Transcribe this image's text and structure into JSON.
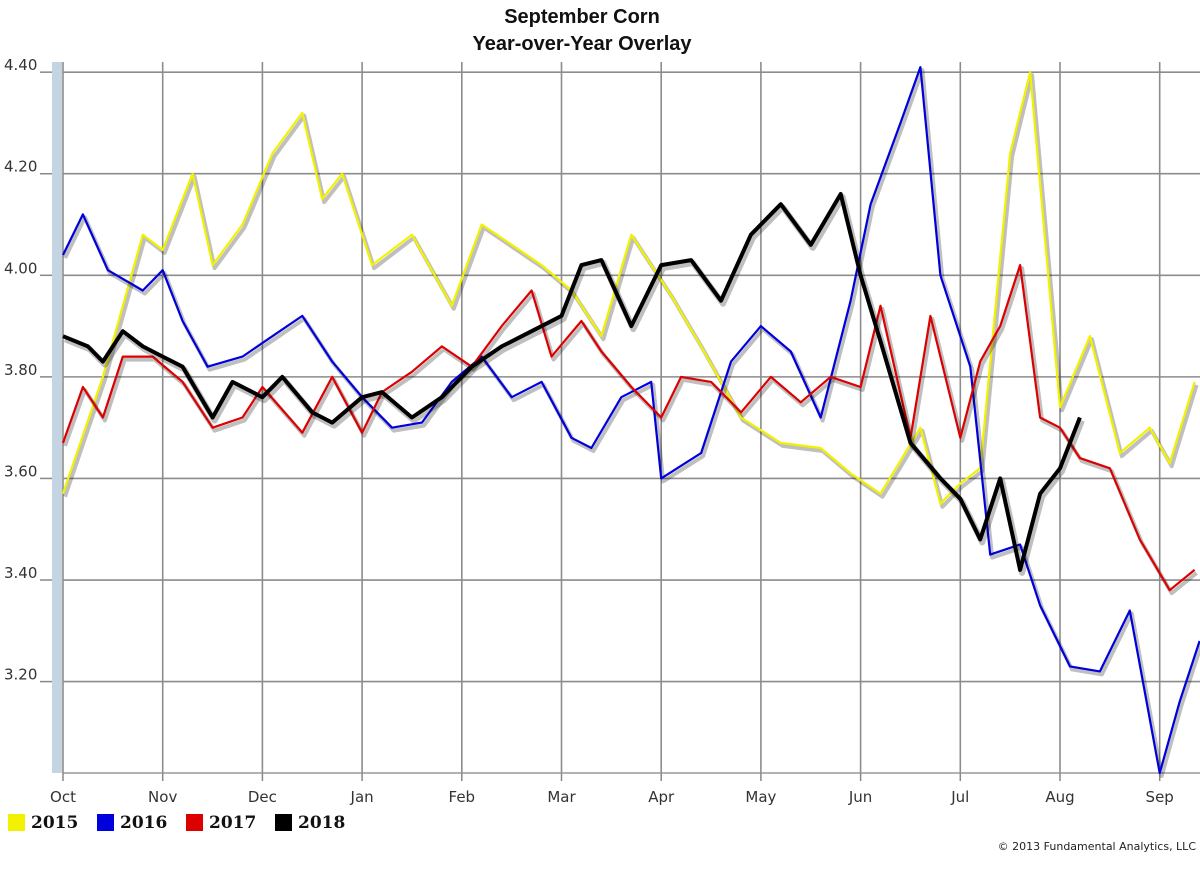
{
  "chart_data": {
    "type": "line",
    "title": "September Corn",
    "subtitle": "Year-over-Year Overlay",
    "xlabel": "",
    "ylabel": "",
    "x_ticks": [
      "Oct",
      "Nov",
      "Dec",
      "Jan",
      "Feb",
      "Mar",
      "Apr",
      "May",
      "Jun",
      "Jul",
      "Aug",
      "Sep"
    ],
    "y_ticks": [
      "3.20",
      "3.40",
      "3.60",
      "3.80",
      "4.00",
      "4.20",
      "4.40"
    ],
    "ylim": [
      3.02,
      4.42
    ],
    "grid": true,
    "legend_position": "bottom-left",
    "copyright": "© 2013 Fundamental Analytics, LLC",
    "series": [
      {
        "name": "2015",
        "color": "#f2f200",
        "x": [
          0.0,
          0.4,
          0.8,
          1.0,
          1.3,
          1.5,
          1.8,
          2.1,
          2.4,
          2.6,
          2.8,
          3.1,
          3.5,
          3.9,
          4.2,
          4.5,
          4.8,
          5.1,
          5.4,
          5.7,
          6.1,
          6.4,
          6.8,
          7.2,
          7.6,
          7.9,
          8.2,
          8.6,
          8.8,
          9.0,
          9.2,
          9.5,
          9.7,
          10.0,
          10.3,
          10.6,
          10.9,
          11.1,
          11.35
        ],
        "y": [
          3.57,
          3.8,
          4.08,
          4.05,
          4.2,
          4.02,
          4.1,
          4.24,
          4.32,
          4.15,
          4.2,
          4.02,
          4.08,
          3.94,
          4.1,
          4.06,
          4.02,
          3.97,
          3.88,
          4.08,
          3.96,
          3.86,
          3.72,
          3.67,
          3.66,
          3.61,
          3.57,
          3.7,
          3.55,
          3.59,
          3.62,
          4.24,
          4.4,
          3.74,
          3.88,
          3.65,
          3.7,
          3.63,
          3.79
        ]
      },
      {
        "name": "2016",
        "color": "#0000dd",
        "x": [
          0.0,
          0.2,
          0.45,
          0.8,
          1.0,
          1.2,
          1.45,
          1.8,
          2.1,
          2.4,
          2.7,
          3.0,
          3.3,
          3.6,
          3.9,
          4.2,
          4.5,
          4.8,
          5.1,
          5.3,
          5.6,
          5.9,
          6.0,
          6.4,
          6.7,
          7.0,
          7.3,
          7.6,
          7.9,
          8.1,
          8.4,
          8.6,
          8.8,
          9.1,
          9.3,
          9.6,
          9.8,
          10.1,
          10.4,
          10.7,
          11.0,
          11.2,
          11.4
        ],
        "y": [
          4.04,
          4.12,
          4.01,
          3.97,
          4.01,
          3.91,
          3.82,
          3.84,
          3.88,
          3.92,
          3.83,
          3.76,
          3.7,
          3.71,
          3.79,
          3.84,
          3.76,
          3.79,
          3.68,
          3.66,
          3.76,
          3.79,
          3.6,
          3.65,
          3.83,
          3.9,
          3.85,
          3.72,
          3.95,
          4.14,
          4.3,
          4.41,
          4.0,
          3.82,
          3.45,
          3.47,
          3.35,
          3.23,
          3.22,
          3.34,
          3.02,
          3.16,
          3.28
        ]
      },
      {
        "name": "2017",
        "color": "#dd0000",
        "x": [
          0.0,
          0.2,
          0.4,
          0.6,
          0.9,
          1.2,
          1.5,
          1.8,
          2.0,
          2.4,
          2.7,
          3.0,
          3.2,
          3.5,
          3.8,
          4.1,
          4.4,
          4.7,
          4.9,
          5.2,
          5.4,
          5.7,
          6.0,
          6.2,
          6.5,
          6.8,
          7.1,
          7.4,
          7.7,
          8.0,
          8.2,
          8.5,
          8.7,
          9.0,
          9.2,
          9.4,
          9.6,
          9.8,
          10.0,
          10.2,
          10.5,
          10.8,
          11.1,
          11.35
        ],
        "y": [
          3.67,
          3.78,
          3.72,
          3.84,
          3.84,
          3.79,
          3.7,
          3.72,
          3.78,
          3.69,
          3.8,
          3.69,
          3.77,
          3.81,
          3.86,
          3.82,
          3.9,
          3.97,
          3.84,
          3.91,
          3.85,
          3.78,
          3.72,
          3.8,
          3.79,
          3.73,
          3.8,
          3.75,
          3.8,
          3.78,
          3.94,
          3.68,
          3.92,
          3.68,
          3.83,
          3.9,
          4.02,
          3.72,
          3.7,
          3.64,
          3.62,
          3.48,
          3.38,
          3.42
        ]
      },
      {
        "name": "2018",
        "color": "#000000",
        "x": [
          0.0,
          0.25,
          0.4,
          0.6,
          0.8,
          1.0,
          1.2,
          1.5,
          1.7,
          2.0,
          2.2,
          2.5,
          2.7,
          3.0,
          3.2,
          3.5,
          3.8,
          4.1,
          4.4,
          4.7,
          5.0,
          5.2,
          5.4,
          5.7,
          6.0,
          6.3,
          6.6,
          6.9,
          7.2,
          7.5,
          7.8,
          8.0,
          8.2,
          8.5,
          8.8,
          9.0,
          9.2,
          9.4,
          9.6,
          9.8,
          10.0,
          10.2
        ],
        "y": [
          3.88,
          3.86,
          3.83,
          3.89,
          3.86,
          3.84,
          3.82,
          3.72,
          3.79,
          3.76,
          3.8,
          3.73,
          3.71,
          3.76,
          3.77,
          3.72,
          3.76,
          3.82,
          3.86,
          3.89,
          3.92,
          4.02,
          4.03,
          3.9,
          4.02,
          4.03,
          3.95,
          4.08,
          4.14,
          4.06,
          4.16,
          4.0,
          3.87,
          3.67,
          3.6,
          3.56,
          3.48,
          3.6,
          3.42,
          3.57,
          3.62,
          3.72
        ]
      }
    ]
  }
}
